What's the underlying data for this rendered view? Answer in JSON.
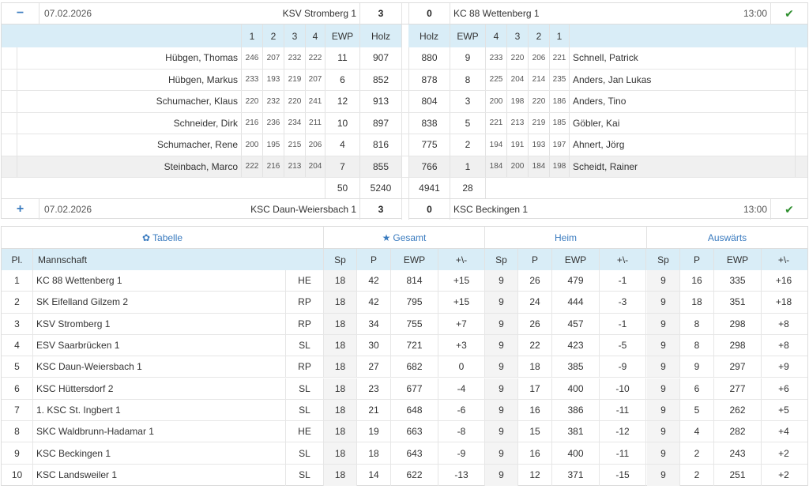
{
  "match1": {
    "toggle": "−",
    "date": "07.02.2026",
    "home_team": "KSV Stromberg 1",
    "home_score": "3",
    "away_score": "0",
    "away_team": "KC 88 Wettenberg 1",
    "time": "13:00",
    "status_icon": "check-icon",
    "headers": {
      "home_rounds": [
        "1",
        "2",
        "3",
        "4"
      ],
      "ewp": "EWP",
      "holz": "Holz",
      "away_rounds": [
        "4",
        "3",
        "2",
        "1"
      ]
    },
    "players": [
      {
        "home": "Hübgen, Thomas",
        "h": [
          "246",
          "207",
          "232",
          "222"
        ],
        "hewp": "11",
        "hholz": "907",
        "aholz": "880",
        "aewp": "9",
        "a": [
          "233",
          "220",
          "206",
          "221"
        ],
        "away": "Schnell, Patrick"
      },
      {
        "home": "Hübgen, Markus",
        "h": [
          "233",
          "193",
          "219",
          "207"
        ],
        "hewp": "6",
        "hholz": "852",
        "aholz": "878",
        "aewp": "8",
        "a": [
          "225",
          "204",
          "214",
          "235"
        ],
        "away": "Anders, Jan Lukas"
      },
      {
        "home": "Schumacher, Klaus",
        "h": [
          "220",
          "232",
          "220",
          "241"
        ],
        "hewp": "12",
        "hholz": "913",
        "aholz": "804",
        "aewp": "3",
        "a": [
          "200",
          "198",
          "220",
          "186"
        ],
        "away": "Anders, Tino"
      },
      {
        "home": "Schneider, Dirk",
        "h": [
          "216",
          "236",
          "234",
          "211"
        ],
        "hewp": "10",
        "hholz": "897",
        "aholz": "838",
        "aewp": "5",
        "a": [
          "221",
          "213",
          "219",
          "185"
        ],
        "away": "Göbler, Kai"
      },
      {
        "home": "Schumacher, Rene",
        "h": [
          "200",
          "195",
          "215",
          "206"
        ],
        "hewp": "4",
        "hholz": "816",
        "aholz": "775",
        "aewp": "2",
        "a": [
          "194",
          "191",
          "193",
          "197"
        ],
        "away": "Ahnert, Jörg"
      },
      {
        "home": "Steinbach, Marco",
        "h": [
          "222",
          "216",
          "213",
          "204"
        ],
        "hewp": "7",
        "hholz": "855",
        "aholz": "766",
        "aewp": "1",
        "a": [
          "184",
          "200",
          "184",
          "198"
        ],
        "away": "Scheidt, Rainer"
      }
    ],
    "totals": {
      "hewp": "50",
      "hholz": "5240",
      "aholz": "4941",
      "aewp": "28"
    }
  },
  "match2": {
    "toggle": "+",
    "date": "07.02.2026",
    "home_team": "KSC Daun-Weiersbach 1",
    "home_score": "3",
    "away_score": "0",
    "away_team": "KSC Beckingen 1",
    "time": "13:00",
    "status_icon": "check-icon"
  },
  "standings": {
    "tabs": {
      "tabelle": "Tabelle",
      "gesamt": "Gesamt",
      "heim": "Heim",
      "auswaerts": "Auswärts"
    },
    "columns": {
      "pl": "Pl.",
      "team": "Mannschaft",
      "sp": "Sp",
      "p": "P",
      "ewp": "EWP",
      "diff": "+\\-"
    },
    "rows": [
      {
        "pl": "1",
        "team": "KC 88 Wettenberg 1",
        "region": "HE",
        "g": [
          "18",
          "42",
          "814",
          "+15"
        ],
        "h": [
          "9",
          "26",
          "479",
          "-1"
        ],
        "a": [
          "9",
          "16",
          "335",
          "+16"
        ]
      },
      {
        "pl": "2",
        "team": "SK Eifelland Gilzem 2",
        "region": "RP",
        "g": [
          "18",
          "42",
          "795",
          "+15"
        ],
        "h": [
          "9",
          "24",
          "444",
          "-3"
        ],
        "a": [
          "9",
          "18",
          "351",
          "+18"
        ]
      },
      {
        "pl": "3",
        "team": "KSV Stromberg 1",
        "region": "RP",
        "g": [
          "18",
          "34",
          "755",
          "+7"
        ],
        "h": [
          "9",
          "26",
          "457",
          "-1"
        ],
        "a": [
          "9",
          "8",
          "298",
          "+8"
        ]
      },
      {
        "pl": "4",
        "team": "ESV Saarbrücken 1",
        "region": "SL",
        "g": [
          "18",
          "30",
          "721",
          "+3"
        ],
        "h": [
          "9",
          "22",
          "423",
          "-5"
        ],
        "a": [
          "9",
          "8",
          "298",
          "+8"
        ]
      },
      {
        "pl": "5",
        "team": "KSC Daun-Weiersbach 1",
        "region": "RP",
        "g": [
          "18",
          "27",
          "682",
          "0"
        ],
        "h": [
          "9",
          "18",
          "385",
          "-9"
        ],
        "a": [
          "9",
          "9",
          "297",
          "+9"
        ]
      },
      {
        "pl": "6",
        "team": "KSC Hüttersdorf 2",
        "region": "SL",
        "g": [
          "18",
          "23",
          "677",
          "-4"
        ],
        "h": [
          "9",
          "17",
          "400",
          "-10"
        ],
        "a": [
          "9",
          "6",
          "277",
          "+6"
        ]
      },
      {
        "pl": "7",
        "team": "1. KSC St. Ingbert 1",
        "region": "SL",
        "g": [
          "18",
          "21",
          "648",
          "-6"
        ],
        "h": [
          "9",
          "16",
          "386",
          "-11"
        ],
        "a": [
          "9",
          "5",
          "262",
          "+5"
        ]
      },
      {
        "pl": "8",
        "team": "SKC Waldbrunn-Hadamar 1",
        "region": "HE",
        "g": [
          "18",
          "19",
          "663",
          "-8"
        ],
        "h": [
          "9",
          "15",
          "381",
          "-12"
        ],
        "a": [
          "9",
          "4",
          "282",
          "+4"
        ]
      },
      {
        "pl": "9",
        "team": "KSC Beckingen 1",
        "region": "SL",
        "g": [
          "18",
          "18",
          "643",
          "-9"
        ],
        "h": [
          "9",
          "16",
          "400",
          "-11"
        ],
        "a": [
          "9",
          "2",
          "243",
          "+2"
        ]
      },
      {
        "pl": "10",
        "team": "KSC Landsweiler 1",
        "region": "SL",
        "g": [
          "18",
          "14",
          "622",
          "-13"
        ],
        "h": [
          "9",
          "12",
          "371",
          "-15"
        ],
        "a": [
          "9",
          "2",
          "251",
          "+2"
        ]
      }
    ]
  }
}
